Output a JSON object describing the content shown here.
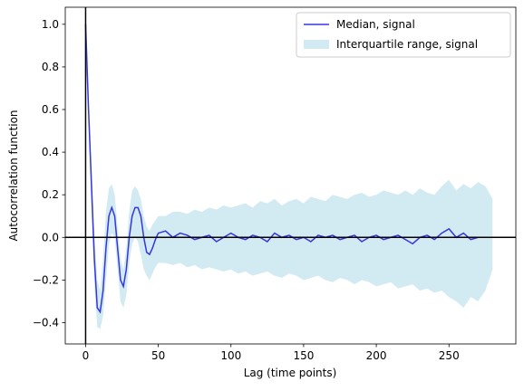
{
  "chart_data": {
    "type": "line",
    "x_label": "Lag (time points)",
    "y_label": "Autocorrelation function",
    "x": [
      0,
      2,
      4,
      6,
      8,
      10,
      12,
      14,
      16,
      18,
      20,
      22,
      24,
      26,
      28,
      30,
      32,
      34,
      36,
      38,
      40,
      42,
      44,
      46,
      48,
      50,
      55,
      60,
      65,
      70,
      75,
      80,
      85,
      90,
      95,
      100,
      105,
      110,
      115,
      120,
      125,
      130,
      135,
      140,
      145,
      150,
      155,
      160,
      165,
      170,
      175,
      180,
      185,
      190,
      195,
      200,
      205,
      210,
      215,
      220,
      225,
      230,
      235,
      240,
      245,
      250,
      255,
      260,
      265,
      270,
      275,
      280
    ],
    "series": [
      {
        "name": "Median, signal",
        "color": "#3636e0",
        "values": [
          1.0,
          0.6,
          0.25,
          -0.1,
          -0.33,
          -0.35,
          -0.25,
          -0.05,
          0.1,
          0.14,
          0.1,
          -0.05,
          -0.2,
          -0.23,
          -0.15,
          0.0,
          0.1,
          0.14,
          0.14,
          0.1,
          0.0,
          -0.07,
          -0.08,
          -0.05,
          -0.01,
          0.02,
          0.03,
          0.0,
          0.02,
          0.01,
          -0.01,
          0.0,
          0.01,
          -0.02,
          0.0,
          0.02,
          0.0,
          -0.01,
          0.01,
          0.0,
          -0.02,
          0.02,
          0.0,
          0.01,
          -0.01,
          0.0,
          -0.02,
          0.01,
          0.0,
          0.01,
          -0.01,
          0.0,
          0.01,
          -0.02,
          0.0,
          0.01,
          -0.01,
          0.0,
          0.01,
          -0.01,
          -0.03,
          0.0,
          0.01,
          -0.01,
          0.02,
          0.04,
          0.0,
          0.02,
          -0.01,
          0.0,
          0.0,
          0.0
        ]
      }
    ],
    "band": {
      "name": "Interquartile range, signal",
      "color": "#add8e6",
      "upper": [
        1.0,
        0.65,
        0.33,
        0.02,
        -0.2,
        -0.25,
        -0.1,
        0.12,
        0.23,
        0.25,
        0.2,
        0.05,
        -0.1,
        -0.15,
        -0.05,
        0.12,
        0.22,
        0.24,
        0.22,
        0.18,
        0.1,
        0.05,
        0.03,
        0.06,
        0.08,
        0.1,
        0.1,
        0.12,
        0.12,
        0.11,
        0.13,
        0.12,
        0.14,
        0.13,
        0.15,
        0.14,
        0.15,
        0.16,
        0.14,
        0.17,
        0.16,
        0.18,
        0.15,
        0.17,
        0.18,
        0.16,
        0.19,
        0.18,
        0.17,
        0.2,
        0.19,
        0.18,
        0.2,
        0.21,
        0.19,
        0.2,
        0.22,
        0.21,
        0.2,
        0.22,
        0.2,
        0.23,
        0.21,
        0.2,
        0.24,
        0.27,
        0.22,
        0.25,
        0.23,
        0.26,
        0.24,
        0.18
      ],
      "lower": [
        1.0,
        0.55,
        0.15,
        -0.22,
        -0.42,
        -0.43,
        -0.37,
        -0.2,
        -0.03,
        0.02,
        0.0,
        -0.15,
        -0.3,
        -0.33,
        -0.27,
        -0.12,
        -0.03,
        0.0,
        -0.02,
        -0.08,
        -0.15,
        -0.18,
        -0.2,
        -0.17,
        -0.14,
        -0.12,
        -0.12,
        -0.13,
        -0.12,
        -0.14,
        -0.13,
        -0.15,
        -0.14,
        -0.15,
        -0.16,
        -0.15,
        -0.17,
        -0.16,
        -0.18,
        -0.17,
        -0.16,
        -0.18,
        -0.19,
        -0.17,
        -0.18,
        -0.2,
        -0.19,
        -0.18,
        -0.2,
        -0.21,
        -0.19,
        -0.2,
        -0.22,
        -0.2,
        -0.21,
        -0.23,
        -0.22,
        -0.21,
        -0.24,
        -0.23,
        -0.22,
        -0.25,
        -0.24,
        -0.26,
        -0.25,
        -0.28,
        -0.3,
        -0.33,
        -0.28,
        -0.3,
        -0.25,
        -0.15
      ]
    },
    "xlim": [
      -14,
      296
    ],
    "ylim": [
      -0.5,
      1.08
    ],
    "xticks": [
      0,
      50,
      100,
      150,
      200,
      250
    ],
    "yticks": [
      {
        "value": -0.4,
        "label": "−0.4"
      },
      {
        "value": -0.2,
        "label": "−0.2"
      },
      {
        "value": 0.0,
        "label": "0.0"
      },
      0.2,
      0.4,
      0.6,
      0.8,
      {
        "value": 1.0,
        "label": "1.0"
      }
    ],
    "legend": "upper right"
  }
}
